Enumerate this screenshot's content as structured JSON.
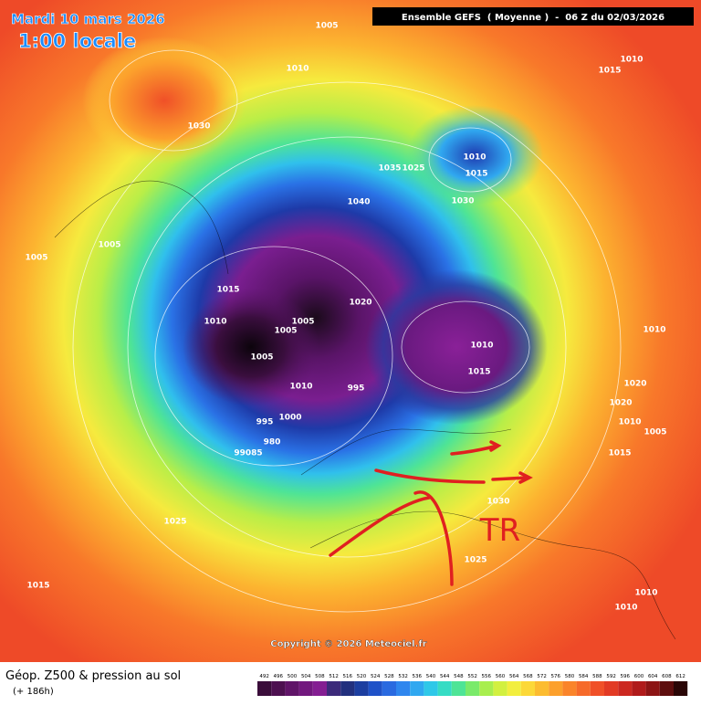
{
  "header": {
    "date": "Mardi 10 mars 2026",
    "time": "1:00 locale",
    "run": "Ensemble GEFS  ( Moyenne )  -  06 Z du 02/03/2026"
  },
  "annotation": "TR",
  "isobar_labels": [
    "1005",
    "1010",
    "1030",
    "1015",
    "1010",
    "1010",
    "1015",
    "1035",
    "1025",
    "1040",
    "1030",
    "1005",
    "1005",
    "1015",
    "1010",
    "1005",
    "1005",
    "1005",
    "1020",
    "1010",
    "1015",
    "1010",
    "995",
    "1010",
    "1000",
    "995",
    "980",
    "99085",
    "1020",
    "1020",
    "1010",
    "1005",
    "1015",
    "1030",
    "1025",
    "1025",
    "1015",
    "1010",
    "1010"
  ],
  "copyright": "Copyright © 2026 Meteociel.fr",
  "footer": {
    "title": "Géop. Z500 & pression au sol",
    "lead": "(+ 186h)"
  },
  "scale": {
    "labels": [
      492,
      496,
      500,
      504,
      508,
      512,
      516,
      520,
      524,
      528,
      532,
      536,
      540,
      544,
      548,
      552,
      556,
      560,
      564,
      568,
      572,
      576,
      580,
      584,
      588,
      592,
      596,
      600,
      604,
      608,
      612
    ],
    "colors": [
      "#3a0d3a",
      "#4d1050",
      "#601468",
      "#72187e",
      "#841e92",
      "#3c2a7a",
      "#22307e",
      "#1c3ea0",
      "#1f52c8",
      "#2a6ae0",
      "#2f86ee",
      "#30a8f0",
      "#2fc8e8",
      "#36dcc4",
      "#4ee496",
      "#7aea6a",
      "#a8ee4e",
      "#d2f040",
      "#f2ee3e",
      "#fcd838",
      "#fcbc30",
      "#fca02c",
      "#fa842a",
      "#f66a2a",
      "#f05028",
      "#e23a24",
      "#cc2820",
      "#b01a1a",
      "#8c1414",
      "#5e0e0e",
      "#2a0606"
    ]
  }
}
